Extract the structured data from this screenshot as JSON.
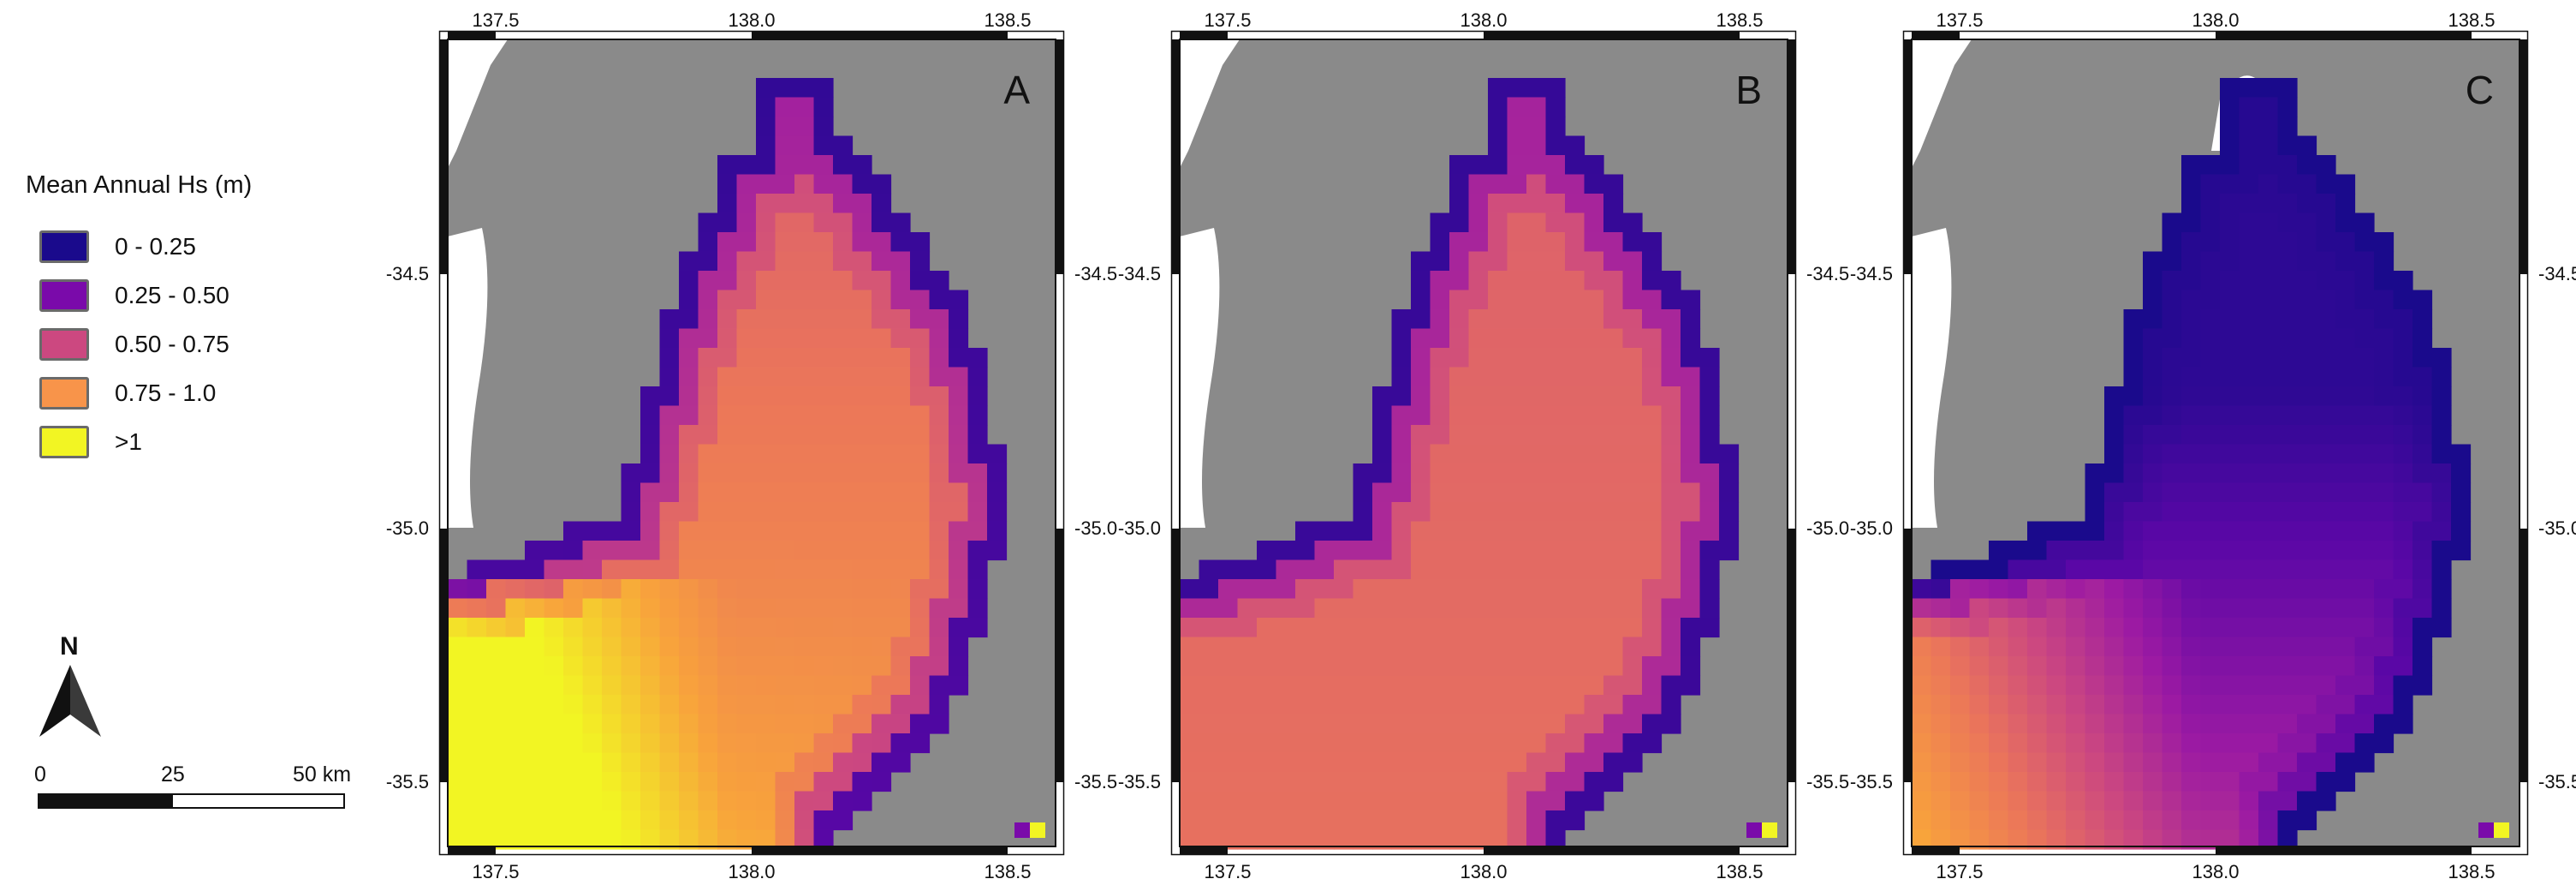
{
  "legend": {
    "title": "Mean Annual Hs (m)",
    "classes": [
      {
        "label": "0 - 0.25",
        "color": "#1a0a8c"
      },
      {
        "label": "0.25 - 0.50",
        "color": "#7a0aaa"
      },
      {
        "label": "0.50 - 0.75",
        "color": "#cc4880"
      },
      {
        "label": "0.75 - 1.0",
        "color": "#f8944a"
      },
      {
        "label": ">1",
        "color": "#f2f523"
      }
    ]
  },
  "north_arrow": {
    "label": "N"
  },
  "scale_bar": {
    "labels": [
      "0",
      "25",
      "50 km"
    ]
  },
  "map_colors": {
    "land": "#8a8a8a",
    "coast": "#ffffff",
    "frame": "#111111"
  },
  "axes": {
    "lon_ticks": [
      "137.5",
      "138.0",
      "138.5"
    ],
    "lat_ticks": [
      "-34.5",
      "-35.0",
      "-35.5"
    ]
  },
  "panels": [
    {
      "letter": "A",
      "wave_regime": "high"
    },
    {
      "letter": "B",
      "wave_regime": "medium"
    },
    {
      "letter": "C",
      "wave_regime": "low"
    }
  ]
}
